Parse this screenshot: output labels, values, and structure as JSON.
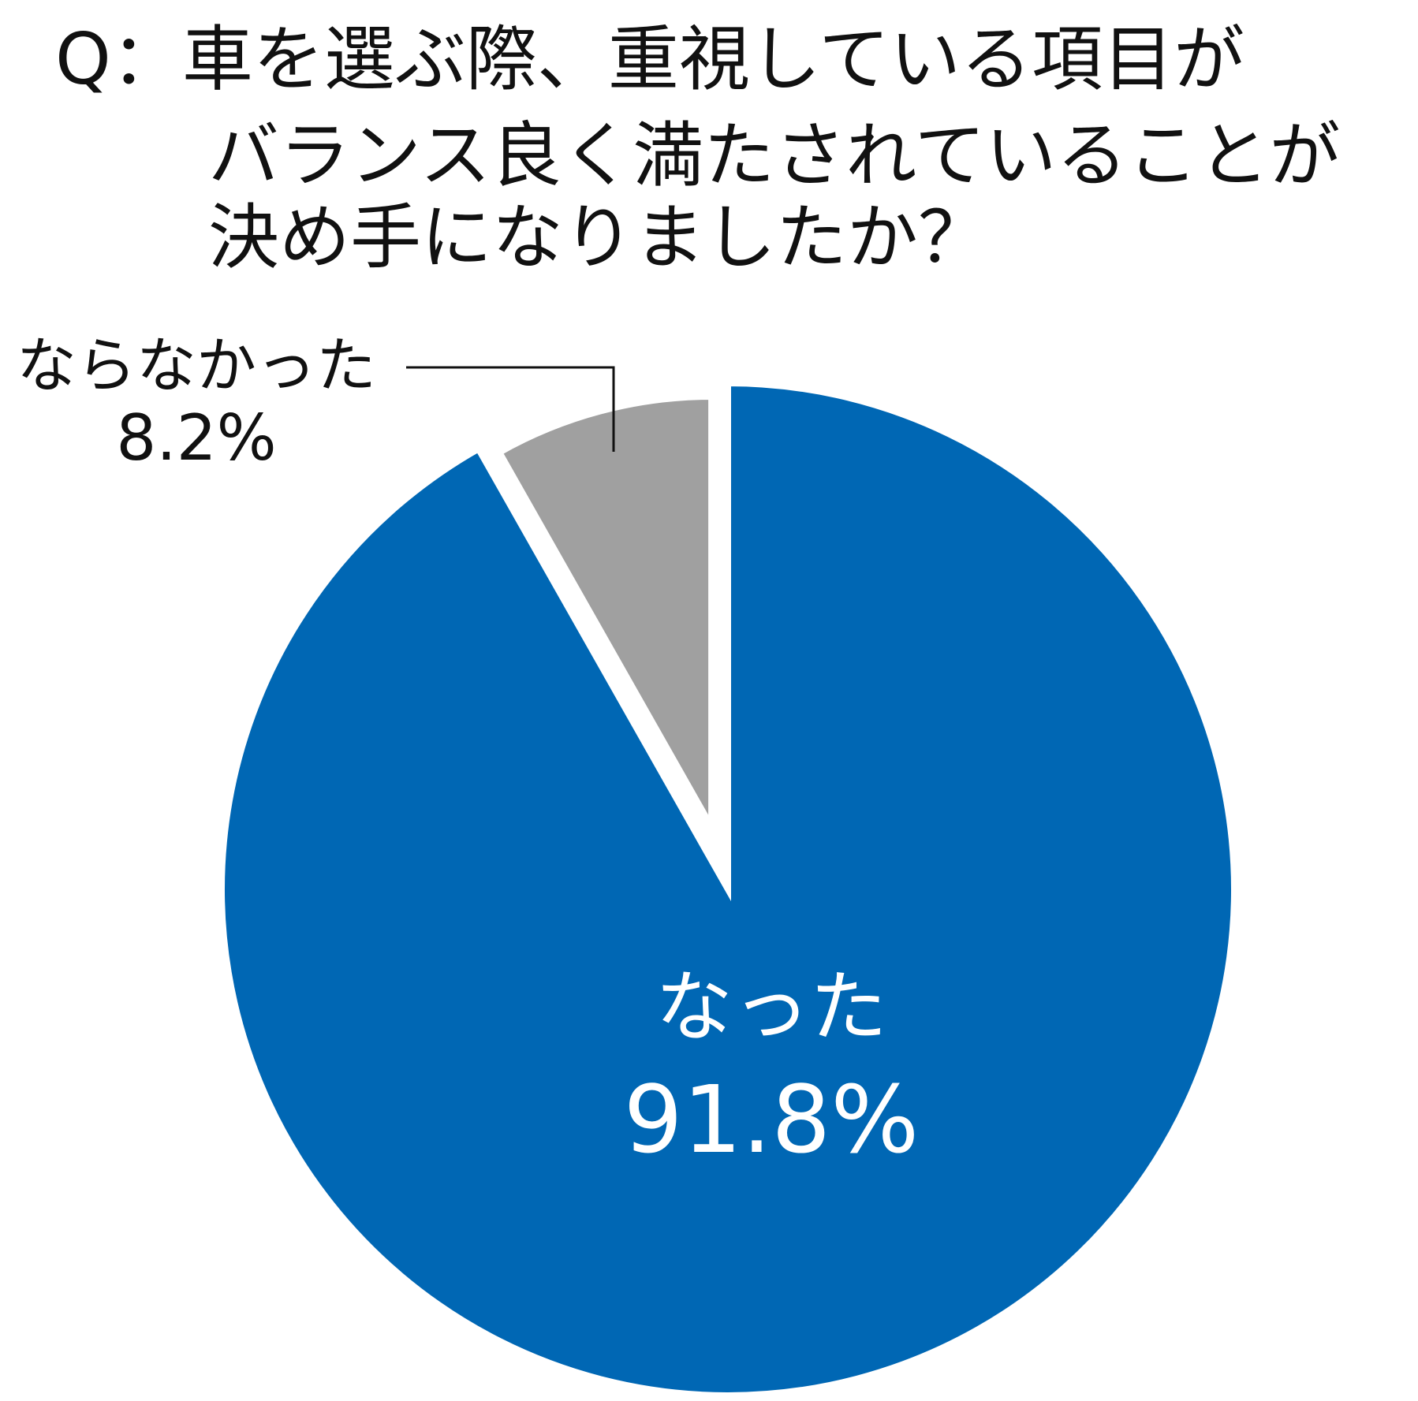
{
  "chart_data": {
    "type": "pie",
    "title": [
      "Q：車を選ぶ際、重視している項目が",
      "バランス良く満たされていることが",
      "決め手になりましたか？"
    ],
    "categories": [
      "なった",
      "ならなかった"
    ],
    "values": [
      91.8,
      8.2
    ],
    "value_labels": [
      "91.8%",
      "8.2%"
    ],
    "colors": [
      "#0067b4",
      "#a0a0a0"
    ]
  }
}
